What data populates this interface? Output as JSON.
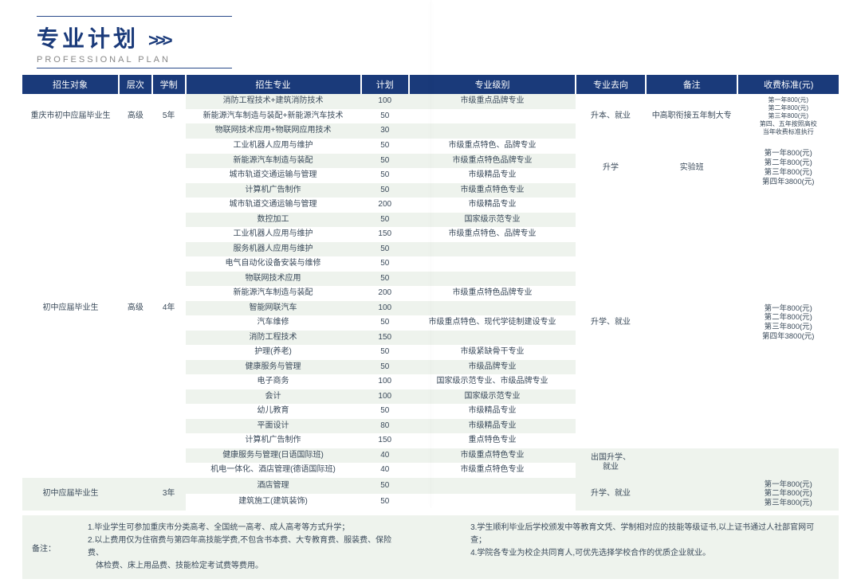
{
  "title": {
    "cn": "专业计划",
    "chevron": ">>>",
    "en": "PROFESSIONAL PLAN"
  },
  "headers": [
    "招生对象",
    "层次",
    "学制",
    "招生专业",
    "计划",
    "专业级别",
    "专业去向",
    "备注",
    "收费标准(元)"
  ],
  "g1": {
    "target": "重庆市初中应届毕业生",
    "level": "高级",
    "years": "5年",
    "direction": "升本、就业",
    "remark": "中高职衔接五年制大专",
    "fee": "第一年800(元)<br>第二年800(元)<br>第三年800(元)<br>第四、五年按照高校<br>当年收费标准执行",
    "r": [
      {
        "m": "消防工程技术+建筑消防技术",
        "p": "100",
        "c": "市级重点品牌专业"
      },
      {
        "m": "新能源汽车制造与装配+新能源汽车技术",
        "p": "50",
        "c": ""
      },
      {
        "m": "物联网技术应用+物联网应用技术",
        "p": "30",
        "c": ""
      }
    ]
  },
  "g2": {
    "target": "初中应届毕业生",
    "level": "高级",
    "years": "4年",
    "d1": "升学",
    "remark1": "实验班",
    "fee1": "第一年800(元)<br>第二年800(元)<br>第三年800(元)<br>第四年3800(元)",
    "d2": "升学、就业",
    "fee2": "第一年800(元)<br>第二年800(元)<br>第三年800(元)<br>第四年3800(元)",
    "d3": "出国升学、<br>就业",
    "r": [
      {
        "m": "工业机器人应用与维护",
        "p": "50",
        "c": "市级重点特色、品牌专业"
      },
      {
        "m": "新能源汽车制造与装配",
        "p": "50",
        "c": "市级重点特色品牌专业"
      },
      {
        "m": "城市轨道交通运输与管理",
        "p": "50",
        "c": "市级精品专业"
      },
      {
        "m": "计算机广告制作",
        "p": "50",
        "c": "市级重点特色专业"
      },
      {
        "m": "城市轨道交通运输与管理",
        "p": "200",
        "c": "市级精品专业"
      },
      {
        "m": "数控加工",
        "p": "50",
        "c": "国家级示范专业"
      },
      {
        "m": "工业机器人应用与维护",
        "p": "150",
        "c": "市级重点特色、品牌专业"
      },
      {
        "m": "服务机器人应用与维护",
        "p": "50",
        "c": ""
      },
      {
        "m": "电气自动化设备安装与维修",
        "p": "50",
        "c": ""
      },
      {
        "m": "物联网技术应用",
        "p": "50",
        "c": ""
      },
      {
        "m": "新能源汽车制造与装配",
        "p": "200",
        "c": "市级重点特色品牌专业"
      },
      {
        "m": "智能网联汽车",
        "p": "100",
        "c": ""
      },
      {
        "m": "汽车维修",
        "p": "50",
        "c": "市级重点特色、现代学徒制建设专业"
      },
      {
        "m": "消防工程技术",
        "p": "150",
        "c": ""
      },
      {
        "m": "护理(养老)",
        "p": "50",
        "c": "市级紧缺骨干专业"
      },
      {
        "m": "健康服务与管理",
        "p": "50",
        "c": "市级品牌专业"
      },
      {
        "m": "电子商务",
        "p": "100",
        "c": "国家级示范专业、市级品牌专业"
      },
      {
        "m": "会计",
        "p": "100",
        "c": "国家级示范专业"
      },
      {
        "m": "幼儿教育",
        "p": "50",
        "c": "市级精品专业"
      },
      {
        "m": "平面设计",
        "p": "80",
        "c": "市级精品专业"
      },
      {
        "m": "计算机广告制作",
        "p": "150",
        "c": "重点特色专业"
      },
      {
        "m": "健康服务与管理(日语国际班)",
        "p": "40",
        "c": "市级重点特色专业"
      },
      {
        "m": "机电一体化、酒店管理(德语国际班)",
        "p": "40",
        "c": "市级重点特色专业"
      }
    ]
  },
  "g3": {
    "target": "初中应届毕业生",
    "years": "3年",
    "direction": "升学、就业",
    "fee": "第一年800(元)<br>第二年800(元)<br>第三年800(元)",
    "r": [
      {
        "m": "酒店管理",
        "p": "50",
        "c": ""
      },
      {
        "m": "建筑施工(建筑装饰)",
        "p": "50",
        "c": ""
      }
    ]
  },
  "footnote": {
    "label": "备注：",
    "left": [
      "1.毕业学生可参加重庆市分类高考、全国统一高考、成人高考等方式升学；",
      "2.以上费用仅为住宿费与第四年高技能学费,不包含书本费、大专教育费、服装费、保险费、",
      "　体检费、床上用品费、技能检定考试费等费用。"
    ],
    "right": [
      "3.学生顺利毕业后学校颁发中等教育文凭、学制相对应的技能等级证书,以上证书通过人社部官网可查；",
      "4.学院各专业为校企共同育人,可优先选择学校合作的优质企业就业。"
    ]
  }
}
